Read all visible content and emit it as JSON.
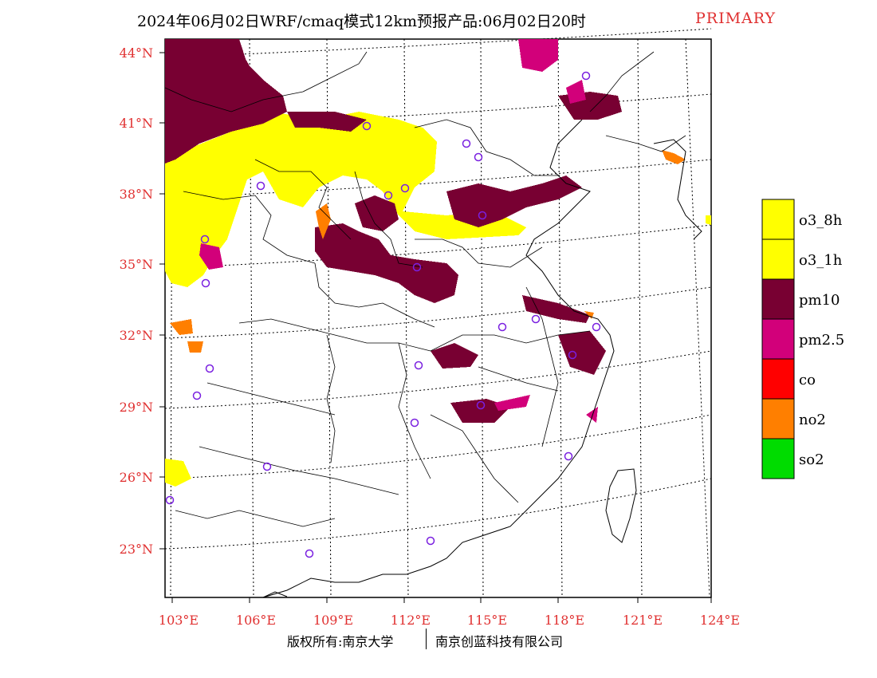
{
  "title": {
    "main": "2024年06月02日WRF/cmaq模式12km预报产品:06月02日20时",
    "tag": "PRIMARY"
  },
  "axes": {
    "lat_labels": [
      "44°N",
      "41°N",
      "38°N",
      "35°N",
      "32°N",
      "29°N",
      "26°N",
      "23°N"
    ],
    "lon_labels": [
      "103°E",
      "106°E",
      "109°E",
      "112°E",
      "115°E",
      "118°E",
      "121°E",
      "124°E"
    ]
  },
  "legend": [
    {
      "label": "o3_8h",
      "color": "#ffff00"
    },
    {
      "label": "o3_1h",
      "color": "#ffff00"
    },
    {
      "label": "pm10",
      "color": "#780032"
    },
    {
      "label": "pm2.5",
      "color": "#d2007a"
    },
    {
      "label": "co",
      "color": "#ff0000"
    },
    {
      "label": "no2",
      "color": "#ff7f00"
    },
    {
      "label": "so2",
      "color": "#00dc00"
    }
  ],
  "colors": {
    "axis_label": "#e03030",
    "station_marker": "#7a20e0"
  },
  "footer": {
    "left": "版权所有:南京大学",
    "right": "南京创蓝科技有限公司"
  }
}
